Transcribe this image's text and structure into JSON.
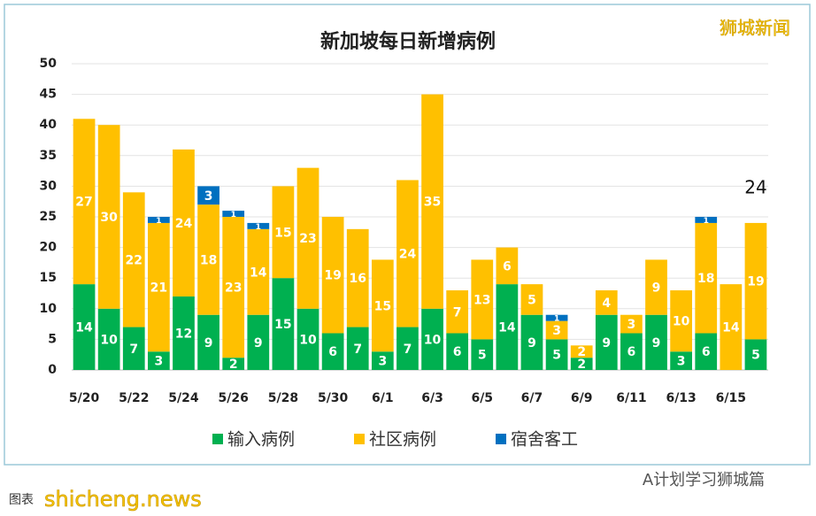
{
  "chart_data": {
    "type": "stacked-bar",
    "title": "新加坡每日新增病例",
    "categories": [
      "5/20",
      null,
      "5/22",
      null,
      "5/24",
      null,
      "5/26",
      null,
      "5/28",
      null,
      "5/30",
      null,
      "6/1",
      null,
      "6/3",
      null,
      "6/5",
      null,
      "6/7",
      null,
      "6/9",
      null,
      "6/11",
      null,
      "6/13",
      null,
      "6/15",
      null
    ],
    "series": [
      {
        "name": "输入病例",
        "color": "#00b050",
        "values": [
          14,
          10,
          7,
          3,
          12,
          9,
          2,
          9,
          15,
          10,
          6,
          7,
          3,
          7,
          10,
          6,
          5,
          14,
          9,
          5,
          2,
          9,
          6,
          9,
          3,
          6,
          0,
          5
        ]
      },
      {
        "name": "社区病例",
        "color": "#ffc000",
        "values": [
          27,
          30,
          22,
          21,
          24,
          18,
          23,
          14,
          15,
          23,
          19,
          16,
          15,
          24,
          35,
          7,
          13,
          6,
          5,
          3,
          2,
          4,
          3,
          9,
          10,
          18,
          14,
          19
        ]
      },
      {
        "name": "宿舍客工",
        "color": "#0070c0",
        "values": [
          0,
          0,
          0,
          1,
          0,
          3,
          1,
          1,
          0,
          0,
          0,
          0,
          0,
          0,
          0,
          0,
          0,
          0,
          0,
          1,
          0,
          0,
          0,
          0,
          0,
          1,
          0,
          0
        ]
      }
    ],
    "ylim": [
      0,
      50
    ],
    "yticks": [
      0,
      5,
      10,
      15,
      20,
      25,
      30,
      35,
      40,
      45,
      50
    ],
    "grid": true,
    "legend": "bottom",
    "annotation": "24"
  },
  "watermarks": {
    "top_right": "狮城新闻",
    "bottom_right": "A计划学习狮城篇",
    "bottom_left": "shicheng.news",
    "caption": "图表"
  }
}
